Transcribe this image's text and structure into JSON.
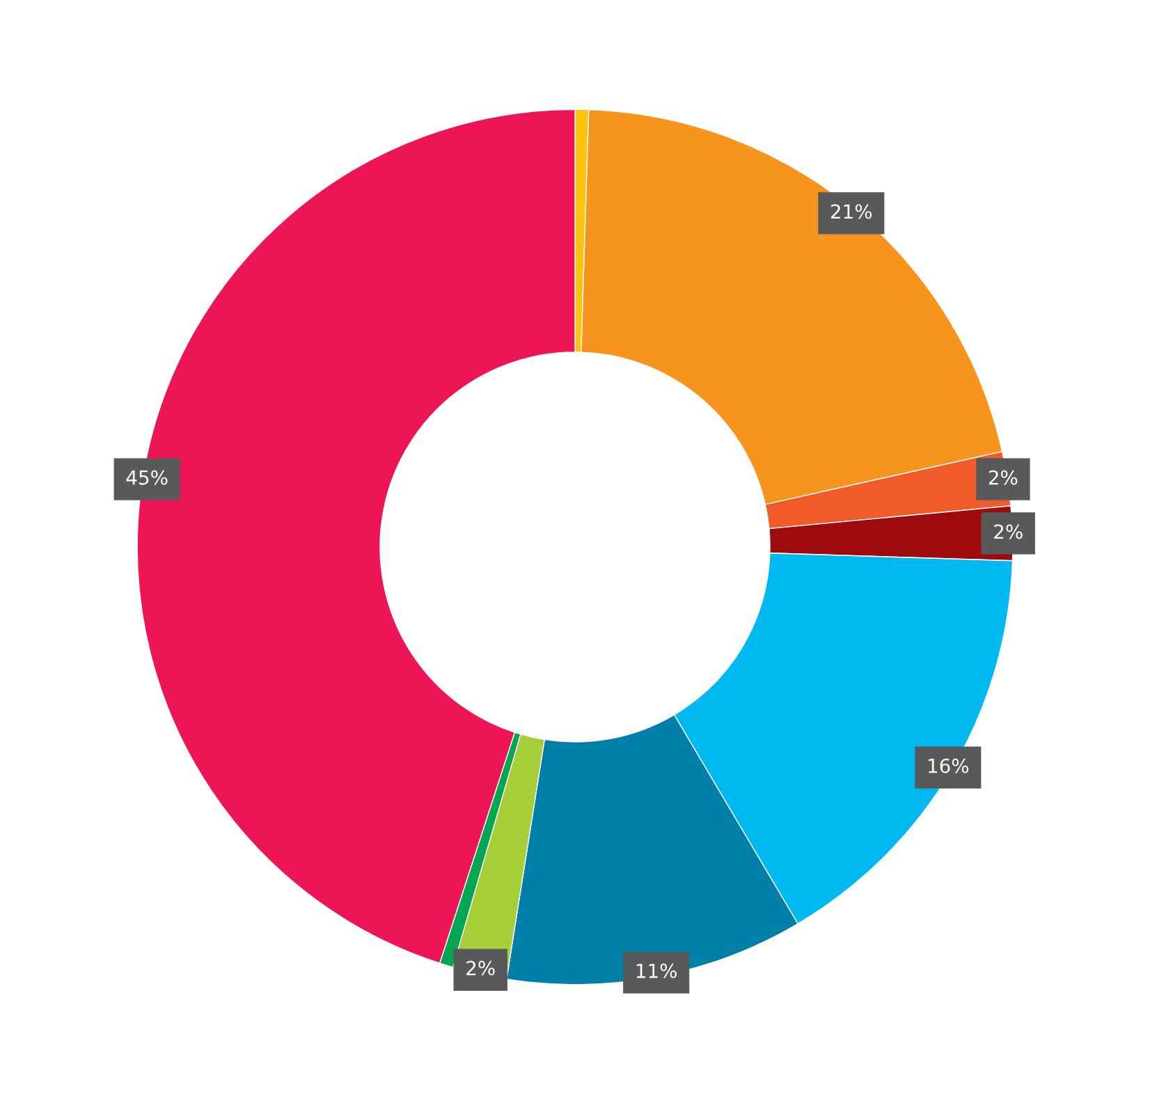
{
  "chart_data": {
    "type": "donut",
    "categories": [
      null,
      null,
      null,
      null,
      null,
      null,
      null,
      null,
      null
    ],
    "values": [
      0.5,
      21,
      2,
      2,
      16,
      11,
      2,
      0.5,
      45
    ],
    "colors": [
      "#fec20f",
      "#f7941d",
      "#f15a29",
      "#9e0b0f",
      "#00b9f1",
      "#0080a8",
      "#a6ce39",
      "#00a651",
      "#ed1556"
    ],
    "value_labels": [
      null,
      "21%",
      "2%",
      "2%",
      "16%",
      "11%",
      "2%",
      null,
      "45%"
    ]
  }
}
